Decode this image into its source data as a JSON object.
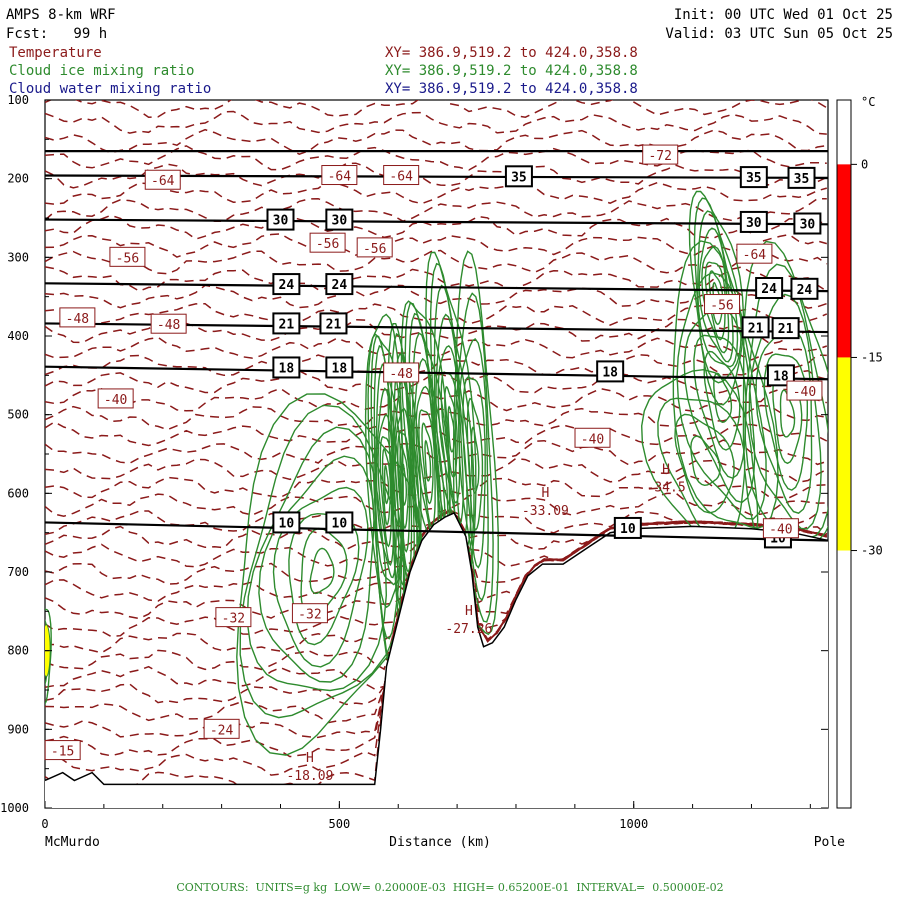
{
  "header": {
    "model": "AMPS 8-km WRF",
    "forecast": "Fcst:   99 h",
    "init": "Init: 00 UTC Wed 01 Oct 25",
    "valid": "Valid: 03 UTC Sun 05 Oct 25",
    "fields": [
      {
        "name": "Temperature",
        "color": "#8b1a1a",
        "xy": "XY= 386.9,519.2 to 424.0,358.8"
      },
      {
        "name": "Cloud ice mixing ratio",
        "color": "#2e8b2e",
        "xy": "XY= 386.9,519.2 to 424.0,358.8"
      },
      {
        "name": "Cloud water mixing ratio",
        "color": "#1a1a8b",
        "xy": "XY= 386.9,519.2 to 424.0,358.8"
      }
    ]
  },
  "footer": {
    "contours": "CONTOURS:  UNITS=g kg  LOW= 0.20000E-03  HIGH= 0.65200E-01  INTERVAL=  0.50000E-02",
    "color": "#2e8b2e"
  },
  "colorbar": {
    "unit": "°C",
    "ticks": [
      {
        "value": "0"
      },
      {
        "value": "-15"
      },
      {
        "value": "-30"
      }
    ],
    "bands": [
      {
        "from": 5,
        "to": 0,
        "color": "#ffffff"
      },
      {
        "from": 0,
        "to": -15,
        "color": "#ff0000"
      },
      {
        "from": -15,
        "to": -30,
        "color": "#ffff00"
      },
      {
        "from": -30,
        "to": -50,
        "color": "#ffffff"
      }
    ]
  },
  "chart_data": {
    "type": "cross-section",
    "xlabel": "Distance (km)",
    "xlim": [
      0,
      1330
    ],
    "xticks": [
      0,
      500,
      1000
    ],
    "x_endpoints": {
      "left": "McMurdo",
      "right": "Pole"
    },
    "ylim": [
      1000,
      100
    ],
    "yticks": [
      100,
      200,
      300,
      400,
      500,
      600,
      700,
      800,
      900,
      1000
    ],
    "isentropes": [
      {
        "label": "35",
        "positions": [
          {
            "x": 805,
            "y": 197
          },
          {
            "x": 1204,
            "y": 198
          },
          {
            "x": 1285,
            "y": 199
          }
        ]
      },
      {
        "label": "30",
        "positions": [
          {
            "x": 400,
            "y": 252
          },
          {
            "x": 500,
            "y": 252
          },
          {
            "x": 1204,
            "y": 255
          },
          {
            "x": 1295,
            "y": 257
          }
        ]
      },
      {
        "label": "24",
        "positions": [
          {
            "x": 410,
            "y": 334
          },
          {
            "x": 500,
            "y": 334
          },
          {
            "x": 1230,
            "y": 339
          },
          {
            "x": 1290,
            "y": 340
          }
        ]
      },
      {
        "label": "21",
        "positions": [
          {
            "x": 410,
            "y": 384
          },
          {
            "x": 490,
            "y": 384
          },
          {
            "x": 1207,
            "y": 389
          },
          {
            "x": 1258,
            "y": 390
          }
        ]
      },
      {
        "label": "18",
        "positions": [
          {
            "x": 410,
            "y": 440
          },
          {
            "x": 500,
            "y": 440
          },
          {
            "x": 960,
            "y": 445
          },
          {
            "x": 1250,
            "y": 450
          }
        ]
      },
      {
        "label": "10",
        "positions": [
          {
            "x": 410,
            "y": 637
          },
          {
            "x": 500,
            "y": 637
          },
          {
            "x": 990,
            "y": 644
          },
          {
            "x": 1245,
            "y": 656
          }
        ]
      }
    ],
    "isentrope_levels": [
      {
        "label": "",
        "y_left": 165,
        "y_right": 165
      },
      {
        "label": "35",
        "y_left": 196,
        "y_right": 199
      },
      {
        "label": "30",
        "y_left": 252,
        "y_right": 258
      },
      {
        "label": "24",
        "y_left": 333,
        "y_right": 343
      },
      {
        "label": "21",
        "y_left": 384,
        "y_right": 395
      },
      {
        "label": "18",
        "y_left": 439,
        "y_right": 455
      },
      {
        "label": "10",
        "y_left": 637,
        "y_right": 660
      }
    ],
    "temperature_labels": [
      {
        "text": "-72",
        "x": 1045,
        "y": 170
      },
      {
        "text": "-64",
        "x": 200,
        "y": 202
      },
      {
        "text": "-64",
        "x": 500,
        "y": 196
      },
      {
        "text": "-64",
        "x": 605,
        "y": 196
      },
      {
        "text": "-56",
        "x": 480,
        "y": 282
      },
      {
        "text": "-56",
        "x": 560,
        "y": 288
      },
      {
        "text": "-56",
        "x": 140,
        "y": 300
      },
      {
        "text": "-64",
        "x": 1205,
        "y": 296
      },
      {
        "text": "-56",
        "x": 1150,
        "y": 360
      },
      {
        "text": "-48",
        "x": 55,
        "y": 377
      },
      {
        "text": "-48",
        "x": 210,
        "y": 385
      },
      {
        "text": "-48",
        "x": 605,
        "y": 447
      },
      {
        "text": "-40",
        "x": 120,
        "y": 480
      },
      {
        "text": "-40",
        "x": 930,
        "y": 530
      },
      {
        "text": "-40",
        "x": 1290,
        "y": 470
      },
      {
        "text": "-40",
        "x": 1250,
        "y": 645
      },
      {
        "text": "-32",
        "x": 320,
        "y": 758
      },
      {
        "text": "-32",
        "x": 450,
        "y": 753
      },
      {
        "text": "-24",
        "x": 300,
        "y": 900
      },
      {
        "text": "-15",
        "x": 30,
        "y": 927
      }
    ],
    "extrema": [
      {
        "type": "H",
        "value": "-33.09",
        "x": 850,
        "y": 620
      },
      {
        "type": "H",
        "value": "-34.5",
        "x": 1055,
        "y": 590
      },
      {
        "type": "H",
        "value": "-27.26",
        "x": 720,
        "y": 770
      },
      {
        "type": "H",
        "value": "-18.09",
        "x": 450,
        "y": 957
      }
    ],
    "terrain": [
      {
        "x": 0,
        "p": 965
      },
      {
        "x": 30,
        "p": 955
      },
      {
        "x": 50,
        "p": 965
      },
      {
        "x": 80,
        "p": 955
      },
      {
        "x": 100,
        "p": 970
      },
      {
        "x": 560,
        "p": 970
      },
      {
        "x": 570,
        "p": 900
      },
      {
        "x": 580,
        "p": 820
      },
      {
        "x": 600,
        "p": 760
      },
      {
        "x": 620,
        "p": 700
      },
      {
        "x": 640,
        "p": 660
      },
      {
        "x": 660,
        "p": 640
      },
      {
        "x": 680,
        "p": 630
      },
      {
        "x": 695,
        "p": 625
      },
      {
        "x": 715,
        "p": 655
      },
      {
        "x": 725,
        "p": 700
      },
      {
        "x": 735,
        "p": 770
      },
      {
        "x": 745,
        "p": 795
      },
      {
        "x": 760,
        "p": 790
      },
      {
        "x": 780,
        "p": 770
      },
      {
        "x": 800,
        "p": 735
      },
      {
        "x": 820,
        "p": 705
      },
      {
        "x": 845,
        "p": 690
      },
      {
        "x": 880,
        "p": 690
      },
      {
        "x": 920,
        "p": 670
      },
      {
        "x": 960,
        "p": 650
      },
      {
        "x": 1000,
        "p": 645
      },
      {
        "x": 1100,
        "p": 642
      },
      {
        "x": 1200,
        "p": 645
      },
      {
        "x": 1270,
        "p": 650
      },
      {
        "x": 1330,
        "p": 660
      }
    ]
  }
}
